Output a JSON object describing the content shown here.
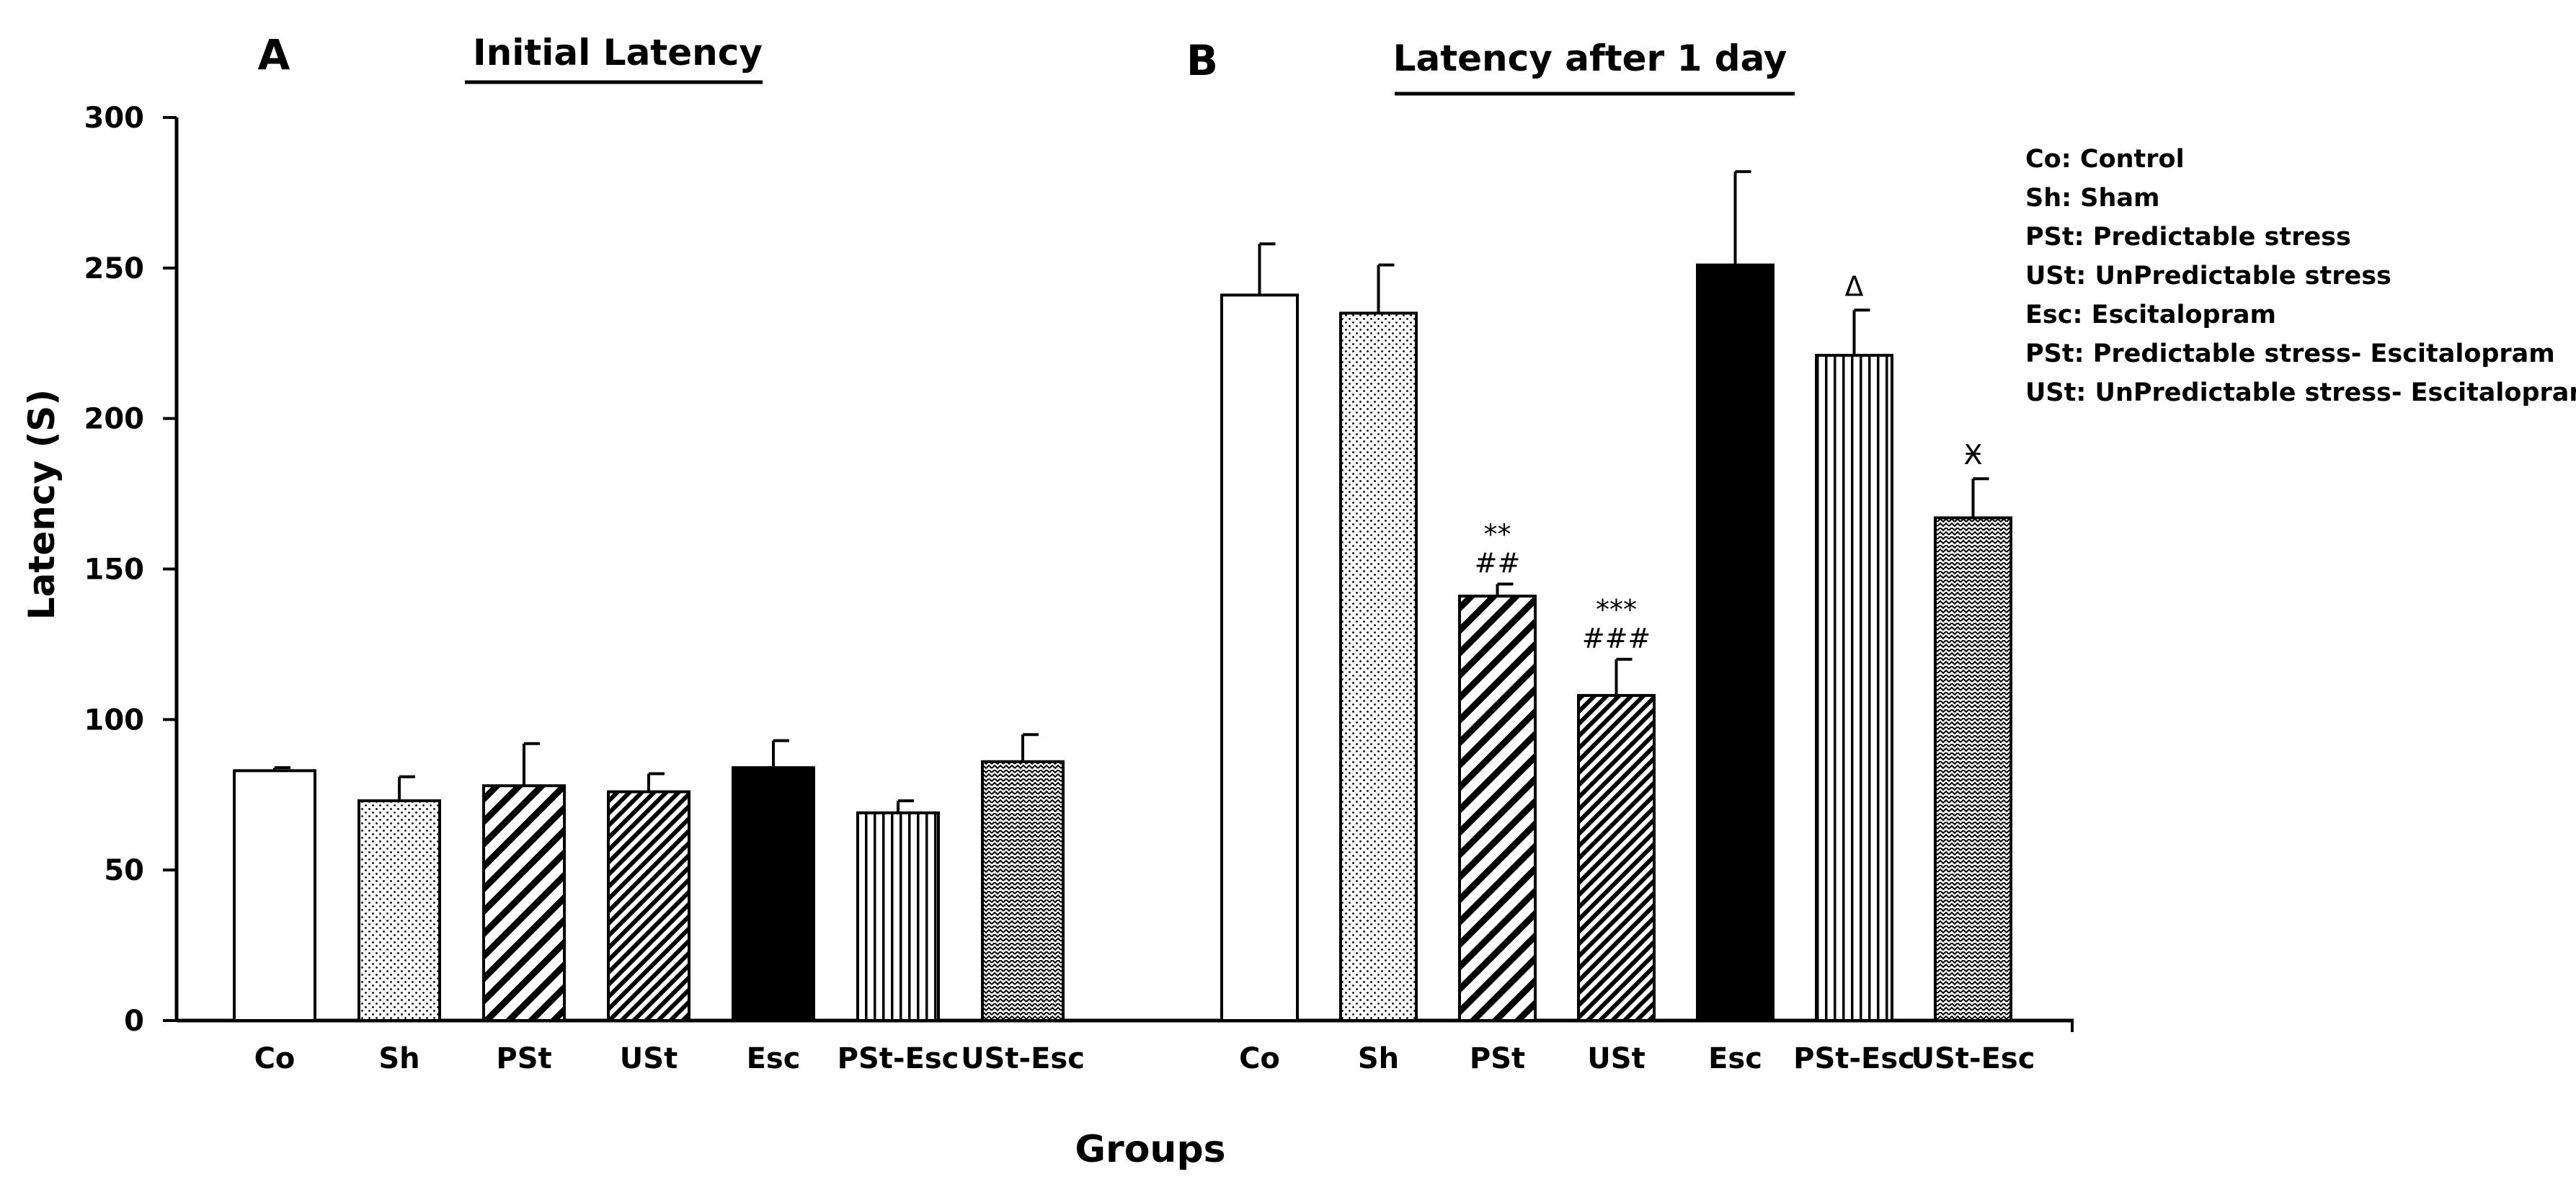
{
  "chart_data": {
    "type": "bar",
    "ylabel": "Latency (S)",
    "xlabel": "Groups",
    "ylim": [
      0,
      300
    ],
    "yticks": [
      0,
      50,
      100,
      150,
      200,
      250,
      300
    ],
    "panels": [
      {
        "letter": "A",
        "title": "Initial Latency",
        "categories": [
          "Co",
          "Sh",
          "PSt",
          "USt",
          "Esc",
          "PSt-Esc",
          "USt-Esc"
        ],
        "values": [
          83,
          73,
          78,
          76,
          84,
          69,
          86
        ],
        "errors": [
          1,
          8,
          14,
          6,
          9,
          4,
          9
        ],
        "annotations": [
          "",
          "",
          "",
          "",
          "",
          "",
          ""
        ],
        "annotations2": [
          "",
          "",
          "",
          "",
          "",
          "",
          ""
        ]
      },
      {
        "letter": "B",
        "title": "Latency after 1 day",
        "categories": [
          "Co",
          "Sh",
          "PSt",
          "USt",
          "Esc",
          "PSt-Esc",
          "USt-Esc"
        ],
        "values": [
          241,
          235,
          141,
          108,
          251,
          221,
          167
        ],
        "errors": [
          17,
          16,
          4,
          12,
          31,
          15,
          13
        ],
        "annotations": [
          "",
          "",
          "**",
          "***",
          "",
          "Δ",
          "Ӿ"
        ],
        "annotations2": [
          "",
          "",
          "##",
          "###",
          "",
          "",
          ""
        ]
      }
    ],
    "patterns": [
      "white",
      "dots",
      "diag-wide",
      "diag-dense",
      "black",
      "vertical",
      "zigzag"
    ],
    "legend": {
      "position": "top-right",
      "entries": [
        "Co: Control",
        "Sh: Sham",
        "PSt: Predictable stress",
        "USt: UnPredictable stress",
        "Esc: Escitalopram",
        "PSt: Predictable stress- Escitalopram",
        "USt: UnPredictable stress- Escitalopram"
      ]
    }
  }
}
